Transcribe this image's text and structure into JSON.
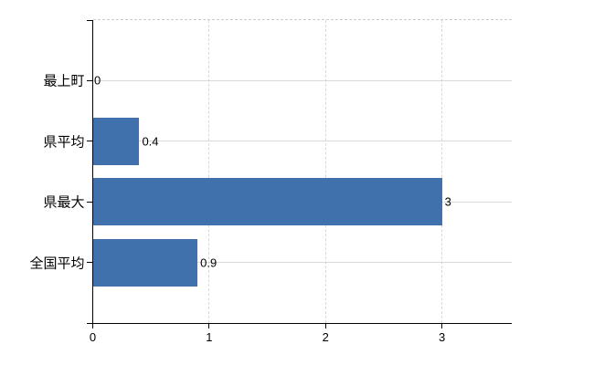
{
  "chart_data": {
    "type": "bar",
    "orientation": "horizontal",
    "title": "",
    "xlabel": "",
    "ylabel": "",
    "categories": [
      "最上町",
      "県平均",
      "県最大",
      "全国平均"
    ],
    "values": [
      0,
      0.4,
      3,
      0.9
    ],
    "value_labels": [
      "0",
      "0.4",
      "3",
      "0.9"
    ],
    "x_ticks": [
      0,
      1,
      2,
      3
    ],
    "x_tick_labels": [
      "0",
      "1",
      "2",
      "3"
    ],
    "xlim": [
      0,
      3.6
    ],
    "legend": "none",
    "grid": {
      "horizontal_gridlines": true,
      "vertical_gridlines_dashed": true,
      "plot_top_border_dashed": true
    },
    "colors": {
      "bar": "#4171ad",
      "h_grid": "#d5ddd5",
      "v_grid": "#d9d6de",
      "top_border": "#cbcbcb",
      "axis": "#000000",
      "text": "#000000",
      "background": "#ffffff"
    }
  }
}
